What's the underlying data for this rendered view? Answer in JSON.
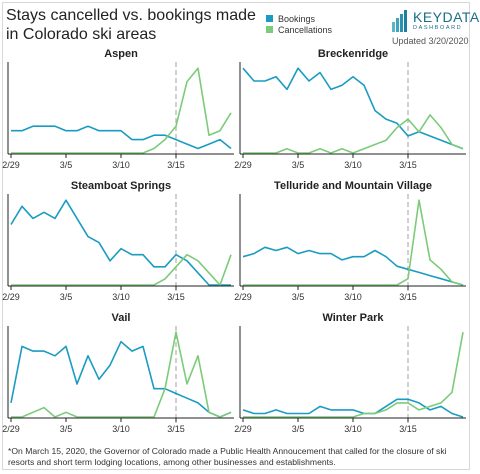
{
  "title_lines": [
    "Stays cancelled vs. bookings made",
    "in Colorado ski areas"
  ],
  "legend": [
    {
      "label": "Bookings",
      "color": "#1a9cc2"
    },
    {
      "label": "Cancellations",
      "color": "#7ccb7a"
    }
  ],
  "brand": {
    "name": "KEYDATA",
    "sub": "DASHBOARD"
  },
  "updated": "Updated 3/20/2020",
  "footnote": "*On March 15, 2020, the Governor of Colorado made a Public Health Annoucement that called for the closure of ski resorts and short term lodging locations, among other businesses and establishments.",
  "colors": {
    "bookings": "#1a9cc2",
    "cancellations": "#7ccb7a",
    "axis": "#222222",
    "marker": "#b0b0b0"
  },
  "chart_data": [
    {
      "type": "line",
      "title": "Aspen",
      "x": [
        "2/29",
        "3/1",
        "3/2",
        "3/3",
        "3/4",
        "3/5",
        "3/6",
        "3/7",
        "3/8",
        "3/9",
        "3/10",
        "3/11",
        "3/12",
        "3/13",
        "3/14",
        "3/15",
        "3/16",
        "3/17",
        "3/18",
        "3/19",
        "3/20"
      ],
      "x_tick_labels": [
        "2/29",
        "3/5",
        "3/10",
        "3/15"
      ],
      "marker_line": "3/15",
      "series": [
        {
          "name": "Bookings",
          "values": [
            5,
            5,
            6,
            6,
            6,
            5,
            5,
            6,
            5,
            5,
            5,
            3,
            3,
            4,
            4,
            3,
            2,
            1,
            2,
            3,
            1
          ]
        },
        {
          "name": "Cancellations",
          "values": [
            0,
            0,
            0,
            0,
            0,
            0,
            0,
            0,
            0,
            0,
            0,
            0,
            0,
            1,
            3,
            6,
            16,
            19,
            4,
            5,
            9
          ]
        }
      ]
    },
    {
      "type": "line",
      "title": "Breckenridge",
      "x": [
        "2/29",
        "3/1",
        "3/2",
        "3/3",
        "3/4",
        "3/5",
        "3/6",
        "3/7",
        "3/8",
        "3/9",
        "3/10",
        "3/11",
        "3/12",
        "3/13",
        "3/14",
        "3/15",
        "3/16",
        "3/17",
        "3/18",
        "3/19",
        "3/20"
      ],
      "x_tick_labels": [
        "2/29",
        "3/5",
        "3/10",
        "3/15"
      ],
      "marker_line": "3/15",
      "series": [
        {
          "name": "Bookings",
          "values": [
            20,
            17,
            17,
            18,
            15,
            20,
            17,
            19,
            15,
            16,
            18,
            16,
            10,
            8,
            7,
            4,
            5,
            4,
            3,
            2,
            1
          ]
        },
        {
          "name": "Cancellations",
          "values": [
            0,
            0,
            0,
            0,
            1,
            0,
            0,
            1,
            0,
            1,
            0,
            1,
            2,
            3,
            6,
            8,
            5,
            9,
            6,
            2,
            1
          ]
        }
      ]
    },
    {
      "type": "line",
      "title": "Steamboat Springs",
      "x": [
        "2/29",
        "3/1",
        "3/2",
        "3/3",
        "3/4",
        "3/5",
        "3/6",
        "3/7",
        "3/8",
        "3/9",
        "3/10",
        "3/11",
        "3/12",
        "3/13",
        "3/14",
        "3/15",
        "3/16",
        "3/17",
        "3/18",
        "3/19",
        "3/20"
      ],
      "x_tick_labels": [
        "2/29",
        "3/5",
        "3/10",
        "3/15"
      ],
      "marker_line": "3/15",
      "series": [
        {
          "name": "Bookings",
          "values": [
            10,
            13,
            11,
            12,
            11,
            14,
            11,
            8,
            7,
            4,
            6,
            5,
            5,
            3,
            3,
            5,
            4,
            2,
            0,
            0,
            0
          ]
        },
        {
          "name": "Cancellations",
          "values": [
            0,
            0,
            0,
            0,
            0,
            0,
            0,
            0,
            0,
            0,
            0,
            0,
            0,
            0,
            1,
            3,
            5,
            4,
            2,
            0,
            5
          ]
        }
      ]
    },
    {
      "type": "line",
      "title": "Telluride and Mountain Village",
      "x": [
        "2/29",
        "3/1",
        "3/2",
        "3/3",
        "3/4",
        "3/5",
        "3/6",
        "3/7",
        "3/8",
        "3/9",
        "3/10",
        "3/11",
        "3/12",
        "3/13",
        "3/14",
        "3/15",
        "3/16",
        "3/17",
        "3/18",
        "3/19",
        "3/20"
      ],
      "x_tick_labels": [
        "2/29",
        "3/5",
        "3/10",
        "3/15"
      ],
      "marker_line": "3/15",
      "series": [
        {
          "name": "Bookings",
          "values": [
            9,
            10,
            12,
            11,
            12,
            10,
            11,
            10,
            10,
            8,
            9,
            9,
            11,
            9,
            6,
            5,
            4,
            3,
            2,
            1,
            0
          ]
        },
        {
          "name": "Cancellations",
          "values": [
            0,
            0,
            0,
            0,
            0,
            0,
            0,
            0,
            0,
            0,
            0,
            0,
            0,
            0,
            0,
            2,
            27,
            8,
            5,
            1,
            0
          ]
        }
      ]
    },
    {
      "type": "line",
      "title": "Vail",
      "x": [
        "2/29",
        "3/1",
        "3/2",
        "3/3",
        "3/4",
        "3/5",
        "3/6",
        "3/7",
        "3/8",
        "3/9",
        "3/10",
        "3/11",
        "3/12",
        "3/13",
        "3/14",
        "3/15",
        "3/16",
        "3/17",
        "3/18",
        "3/19",
        "3/20"
      ],
      "x_tick_labels": [
        "2/29",
        "3/5",
        "3/10",
        "3/15"
      ],
      "marker_line": "3/15",
      "series": [
        {
          "name": "Bookings",
          "values": [
            3,
            15,
            14,
            14,
            13,
            15,
            7,
            13,
            8,
            11,
            16,
            14,
            15,
            6,
            6,
            5,
            4,
            3,
            1,
            0,
            1
          ]
        },
        {
          "name": "Cancellations",
          "values": [
            0,
            0,
            1,
            2,
            0,
            1,
            0,
            0,
            0,
            0,
            0,
            0,
            0,
            0,
            6,
            18,
            7,
            13,
            1,
            0,
            1
          ]
        }
      ]
    },
    {
      "type": "line",
      "title": "Winter Park",
      "x": [
        "2/29",
        "3/1",
        "3/2",
        "3/3",
        "3/4",
        "3/5",
        "3/6",
        "3/7",
        "3/8",
        "3/9",
        "3/10",
        "3/11",
        "3/12",
        "3/13",
        "3/14",
        "3/15",
        "3/16",
        "3/17",
        "3/18",
        "3/19",
        "3/20"
      ],
      "x_tick_labels": [
        "2/29",
        "3/5",
        "3/10",
        "3/15"
      ],
      "marker_line": "3/15",
      "series": [
        {
          "name": "Bookings",
          "values": [
            2,
            1,
            1,
            2,
            1,
            1,
            1,
            3,
            2,
            2,
            2,
            1,
            1,
            3,
            5,
            5,
            4,
            2,
            3,
            1,
            0
          ]
        },
        {
          "name": "Cancellations",
          "values": [
            0,
            0,
            0,
            0,
            0,
            0,
            0,
            0,
            0,
            0,
            0,
            1,
            1,
            2,
            4,
            4,
            2,
            3,
            4,
            7,
            24
          ]
        }
      ]
    }
  ]
}
